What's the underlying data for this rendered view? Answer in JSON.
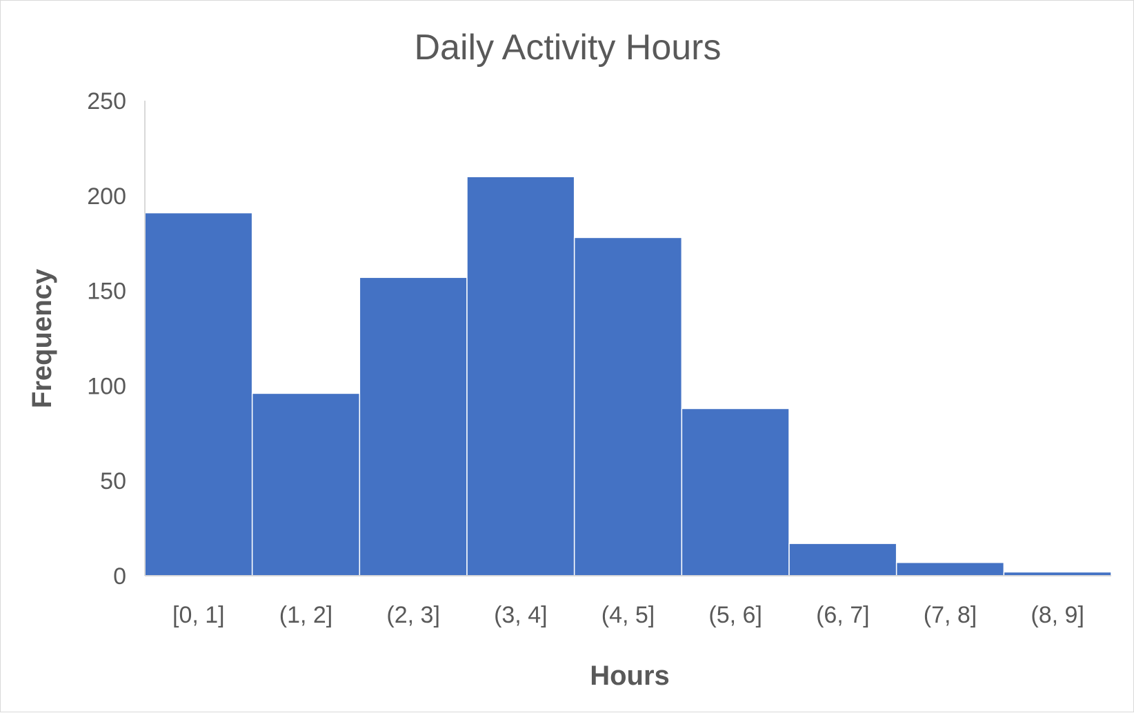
{
  "chart_data": {
    "type": "bar",
    "title": "Daily Activity Hours",
    "xlabel": "Hours",
    "ylabel": "Frequency",
    "categories": [
      "[0, 1]",
      "(1, 2]",
      "(2, 3]",
      "(3, 4]",
      "(4, 5]",
      "(5, 6]",
      "(6, 7]",
      "(7, 8]",
      "(8, 9]"
    ],
    "values": [
      191,
      96,
      157,
      210,
      178,
      88,
      17,
      7,
      2
    ],
    "ylim": [
      0,
      250
    ],
    "yticks": [
      "0",
      "50",
      "100",
      "150",
      "200",
      "250"
    ],
    "bar_color": "#4472C4",
    "grid": false
  }
}
